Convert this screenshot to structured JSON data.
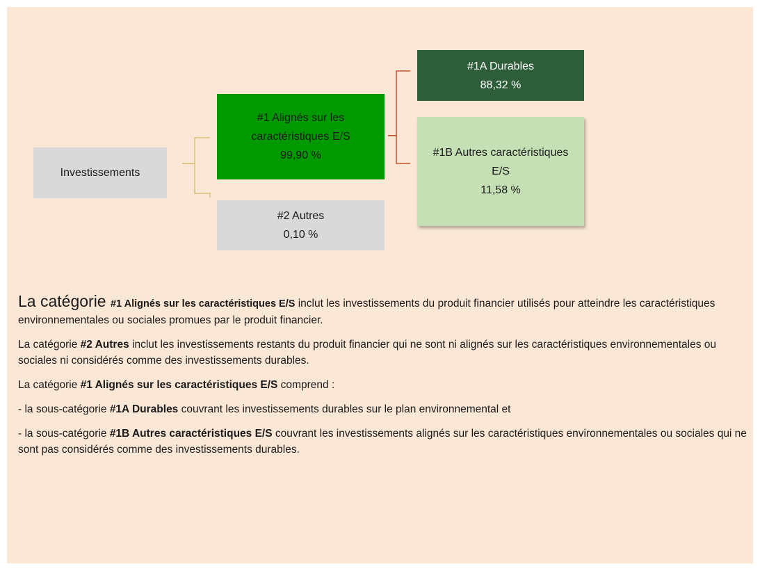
{
  "nodes": [
    {
      "label": "Investissements"
    },
    {
      "label": "#1 Alignés sur les caractéristiques E/S",
      "value": "99,90 %"
    },
    {
      "label": "#2 Autres",
      "value": "0,10 %"
    },
    {
      "label": "#1A Durables",
      "value": "88,32 %"
    },
    {
      "label": "#1B Autres caractéristiques E/S",
      "value": "11,58 %"
    }
  ],
  "paragraphs": [
    [
      {
        "text": "La catégorie "
      },
      {
        "text": "#1 Alignés sur les caractéristiques E/S",
        "bold": true
      },
      {
        "text": " inclut les investissements du produit financier utilisés pour atteindre les caractéristiques environnementales ou sociales promues par le produit financier."
      }
    ],
    [
      {
        "text": "La catégorie "
      },
      {
        "text": "#2 Autres",
        "bold": true
      },
      {
        "text": " inclut les investissements restants du produit financier qui ne sont ni alignés sur les caractéristiques environnementales ou sociales ni considérés comme des investissements durables."
      }
    ],
    [
      {
        "text": "La catégorie "
      },
      {
        "text": "#1 Alignés sur les caractéristiques E/S",
        "bold": true
      },
      {
        "text": " comprend :"
      }
    ],
    [
      {
        "text": "- la sous-catégorie "
      },
      {
        "text": "#1A Durables",
        "bold": true
      },
      {
        "text": " couvrant les investissements durables sur le plan environnemental et"
      }
    ],
    [
      {
        "text": "- la sous-catégorie "
      },
      {
        "text": "#1B Autres caractéristiques E/S",
        "bold": true
      },
      {
        "text": " couvrant les investissements alignés sur les caractéristiques environnementales ou sociales qui ne sont pas considérés comme des investissements durables."
      }
    ]
  ]
}
